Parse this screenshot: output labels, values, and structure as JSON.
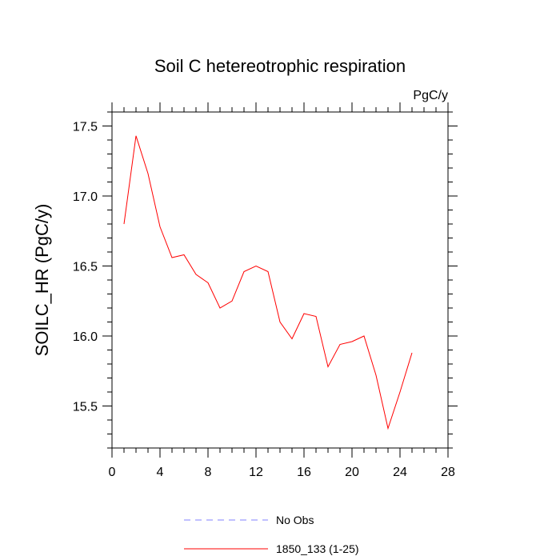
{
  "chart_data": {
    "type": "line",
    "title": "Soil C hetereotrophic respiration",
    "units_label": "PgC/y",
    "xlabel": "",
    "ylabel": "SOILC_HR  (PgC/y)",
    "xlim": [
      0,
      28
    ],
    "ylim": [
      15.2,
      17.6
    ],
    "x_ticks": [
      "0",
      "4",
      "8",
      "12",
      "16",
      "20",
      "24",
      "28"
    ],
    "y_ticks": [
      "15.5",
      "16.0",
      "16.5",
      "17.0",
      "17.5"
    ],
    "grid": false,
    "legend_position": "bottom",
    "series": [
      {
        "name": "No Obs",
        "color": "#8080ff",
        "style": "dashed",
        "x": [],
        "values": []
      },
      {
        "name": "1850_133 (1-25)",
        "color": "#ff0000",
        "style": "solid",
        "x": [
          1,
          2,
          3,
          4,
          5,
          6,
          7,
          8,
          9,
          10,
          11,
          12,
          13,
          14,
          15,
          16,
          17,
          18,
          19,
          20,
          21,
          22,
          23,
          24,
          25
        ],
        "values": [
          16.8,
          17.43,
          17.16,
          16.78,
          16.56,
          16.58,
          16.44,
          16.38,
          16.2,
          16.25,
          16.46,
          16.5,
          16.46,
          16.1,
          15.98,
          16.16,
          16.14,
          15.78,
          15.94,
          15.96,
          16.0,
          15.72,
          15.34,
          15.6,
          15.88
        ]
      }
    ]
  }
}
